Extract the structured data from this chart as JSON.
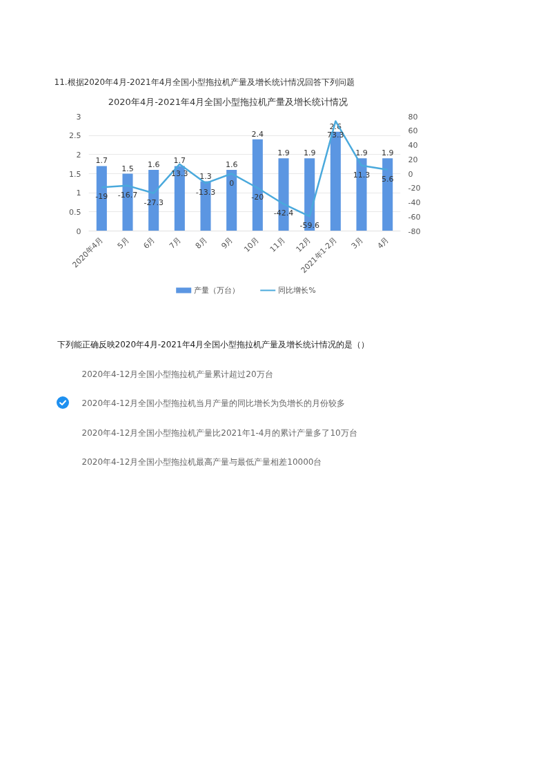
{
  "chart_data": {
    "type": "bar",
    "title": "2020年4月-2021年4月全国小型拖拉机产量及增长统计情况",
    "categories": [
      "2020年4月",
      "5月",
      "6月",
      "7月",
      "8月",
      "9月",
      "10月",
      "11月",
      "12月",
      "2021年1-2月",
      "3月",
      "4月"
    ],
    "series": [
      {
        "name": "产量（万台）",
        "color": "#5b96e2",
        "values": [
          1.7,
          1.5,
          1.6,
          1.7,
          1.3,
          1.6,
          2.4,
          1.9,
          1.9,
          2.6,
          1.9,
          1.9
        ]
      },
      {
        "name": "同比增长%",
        "type": "line",
        "axis": "y2",
        "color": "#4aa9dc",
        "values": [
          -19,
          -16.7,
          -27.3,
          13.3,
          -13.3,
          0,
          -20,
          -42.4,
          -59.6,
          73.3,
          11.3,
          5.6
        ]
      }
    ],
    "ylim": [
      0,
      3
    ],
    "yticks": [
      0,
      0.5,
      1,
      1.5,
      2,
      2.5,
      3
    ],
    "y2lim": [
      -80,
      80
    ],
    "y2ticks": [
      -80,
      -60,
      -40,
      -20,
      0,
      20,
      40,
      60,
      80
    ],
    "data_labels": true,
    "grid": "y",
    "legend": "bottom",
    "annotations": [
      "11.根据2020年4月-2021年4月全国小型拖拉机产量及增长统计情况回答下列问题",
      "下列能正确反映2020年4月-2021年4月全国小型拖拉机产量及增长统计情况的是（）",
      "2020年4-12月全国小型拖拉机产量累计超过20万台",
      "2020年4-12月全国小型拖拉机当月产量的同比增长为负增长的月份较多",
      "2020年4-12月全国小型拖拉机产量比2021年1-4月的累计产量多了10万台",
      "2020年4-12月全国小型拖拉机最高产量与最低产量相差10000台"
    ]
  }
}
